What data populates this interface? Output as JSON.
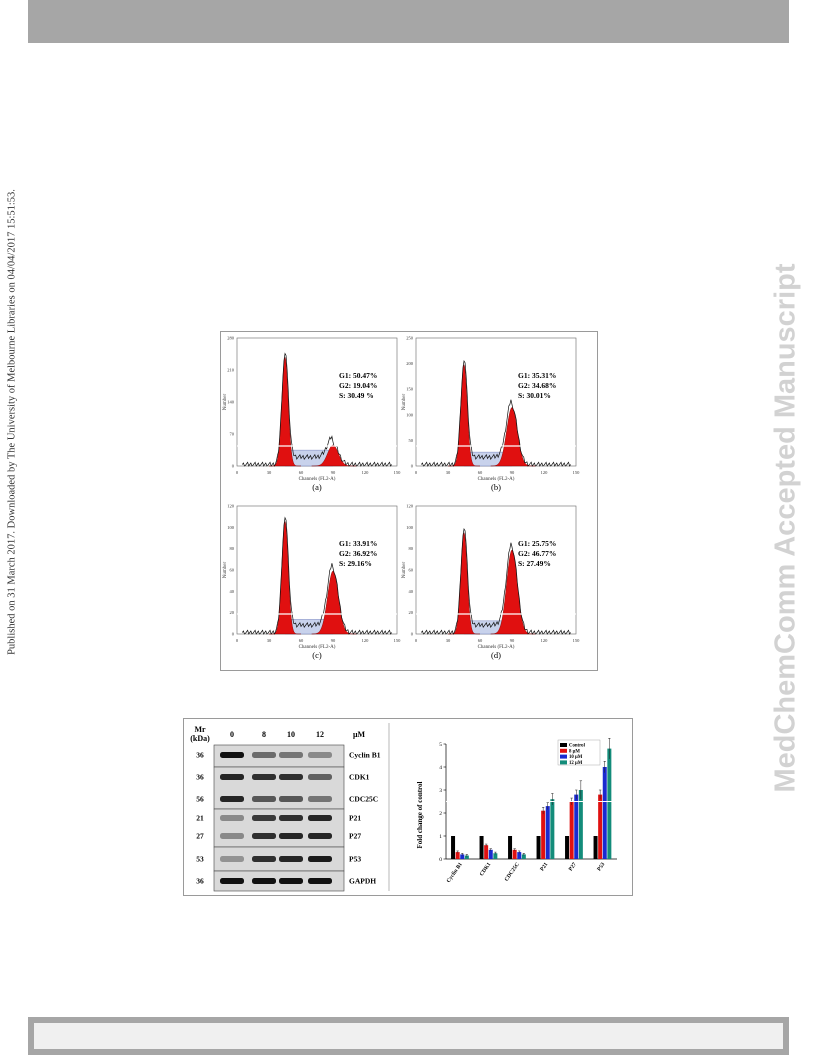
{
  "sidebar_left": "Published on 31 March 2017. Downloaded by The University of Melbourne Libraries on 04/04/2017 15:51:53.",
  "sidebar_right": "MedChemComm Accepted Manuscript",
  "figure1": {
    "panels": [
      {
        "label": "(a)",
        "g1": "G1: 50.47%",
        "g2": "G2: 19.04%",
        "s": "S: 30.49 %",
        "xlabel": "Channels (FL2-A)",
        "ylabel": "Number",
        "xticks": [
          "0",
          "30",
          "60",
          "90",
          "120",
          "150"
        ],
        "yticks": [
          "0",
          "70",
          "140",
          "210",
          "280"
        ]
      },
      {
        "label": "(b)",
        "g1": "G1: 35.31%",
        "g2": "G2: 34.68%",
        "s": "S: 30.01%",
        "xlabel": "Channels (FL2-A)",
        "ylabel": "Number",
        "xticks": [
          "0",
          "30",
          "60",
          "90",
          "120",
          "150"
        ],
        "yticks": [
          "0",
          "50",
          "100",
          "150",
          "200",
          "250"
        ]
      },
      {
        "label": "(c)",
        "g1": "G1: 33.91%",
        "g2": "G2: 36.92%",
        "s": "S: 29.16%",
        "xlabel": "Channels (FL2-A)",
        "ylabel": "Number",
        "xticks": [
          "0",
          "30",
          "60",
          "90",
          "120",
          "150"
        ],
        "yticks": [
          "0",
          "20",
          "40",
          "60",
          "80",
          "100",
          "120"
        ]
      },
      {
        "label": "(d)",
        "g1": "G1: 25.75%",
        "g2": "G2: 46.77%",
        "s": "S: 27.49%",
        "xlabel": "Channels (FL2-A)",
        "ylabel": "Number",
        "xticks": [
          "0",
          "30",
          "60",
          "90",
          "120",
          "150"
        ],
        "yticks": [
          "0",
          "20",
          "40",
          "60",
          "80",
          "100",
          "120"
        ]
      }
    ]
  },
  "figure2": {
    "blot": {
      "header_mr": "Mr",
      "header_kda": "(kDa)",
      "unit": "μM",
      "doses": [
        "0",
        "8",
        "10",
        "12"
      ],
      "rows": [
        {
          "mr": "36",
          "protein": "Cyclin B1"
        },
        {
          "mr": "36",
          "protein": "CDK1"
        },
        {
          "mr": "56",
          "protein": "CDC25C"
        },
        {
          "mr": "21",
          "protein": "P21"
        },
        {
          "mr": "27",
          "protein": "P27"
        },
        {
          "mr": "53",
          "protein": "P53"
        },
        {
          "mr": "36",
          "protein": "GAPDH"
        }
      ]
    }
  },
  "chart_data": {
    "type": "bar",
    "ylabel": "Fold change of control",
    "ylim": [
      0,
      5
    ],
    "yticks": [
      "0",
      "1",
      "2",
      "3",
      "4",
      "5"
    ],
    "categories": [
      "Cyclin B1",
      "CDK1",
      "CDC25C",
      "P21",
      "P27",
      "P53"
    ],
    "legend_position": "top-right",
    "series": [
      {
        "name": "Control",
        "color": "#000000",
        "values": [
          1,
          1,
          1,
          1,
          1,
          1
        ],
        "errors": [
          0,
          0,
          0,
          0,
          0,
          0
        ]
      },
      {
        "name": "8 μM",
        "color": "#e01010",
        "values": [
          0.3,
          0.6,
          0.4,
          2.1,
          2.5,
          2.8
        ],
        "errors": [
          0.05,
          0.05,
          0.05,
          0.15,
          0.15,
          0.2
        ]
      },
      {
        "name": "10 μM",
        "color": "#1a2ad0",
        "values": [
          0.2,
          0.4,
          0.3,
          2.3,
          2.8,
          4.0
        ],
        "errors": [
          0.05,
          0.05,
          0.05,
          0.15,
          0.2,
          0.25
        ]
      },
      {
        "name": "12 μM",
        "color": "#138c7a",
        "values": [
          0.15,
          0.25,
          0.2,
          2.6,
          3.0,
          4.8
        ],
        "errors": [
          0.05,
          0.05,
          0.05,
          0.25,
          0.4,
          0.45
        ]
      }
    ]
  }
}
